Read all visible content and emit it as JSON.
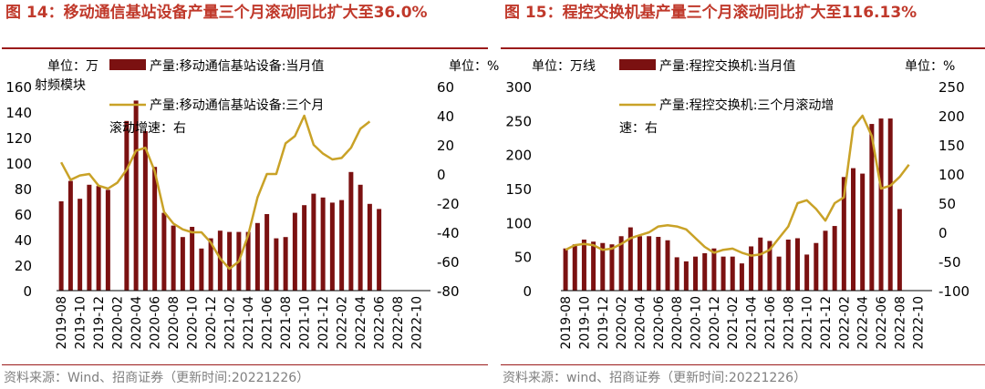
{
  "colors": {
    "title": "#c0392b",
    "bar": "#7b1111",
    "line": "#c9a227",
    "source": "#7f7f7f"
  },
  "chart_data": [
    {
      "type": "bar+line",
      "title": "图 14：移动通信基站设备产量三个月滚动同比扩大至36.0%",
      "unit_left": "单位：万射频模块",
      "unit_right": "单位：%",
      "legend_bar": "产量:移动通信基站设备:当月值",
      "legend_line": "产量:移动通信基站设备:三个月滚动增速：右",
      "source": "资料来源：Wind、招商证券（更新时间:20221226）",
      "left_ticks": [
        "0",
        "20",
        "40",
        "60",
        "80",
        "100",
        "120",
        "140",
        "160"
      ],
      "right_ticks": [
        "-80",
        "-60",
        "-40",
        "-20",
        "0",
        "20",
        "40",
        "60"
      ],
      "ylim_left": [
        0,
        160
      ],
      "ylim_right": [
        -80,
        60
      ],
      "x_tick_labels": [
        "2019-08",
        "2019-10",
        "2019-12",
        "2020-02",
        "2020-04",
        "2020-06",
        "2020-08",
        "2020-10",
        "2020-12",
        "2021-02",
        "2021-04",
        "2021-06",
        "2021-08",
        "2021-10",
        "2021-12",
        "2022-02",
        "2022-04",
        "2022-06",
        "2022-08",
        "2022-10"
      ],
      "months": [
        "2019-08",
        "2019-09",
        "2019-10",
        "2019-11",
        "2019-12",
        "2020-01",
        "2020-02",
        "2020-03",
        "2020-04",
        "2020-05",
        "2020-06",
        "2020-07",
        "2020-08",
        "2020-09",
        "2020-10",
        "2020-11",
        "2020-12",
        "2021-01",
        "2021-02",
        "2021-03",
        "2021-04",
        "2021-05",
        "2021-06",
        "2021-07",
        "2021-08",
        "2021-09",
        "2021-10",
        "2021-11",
        "2021-12",
        "2022-01",
        "2022-02",
        "2022-03",
        "2022-04",
        "2022-05",
        "2022-06",
        "2022-07",
        "2022-08",
        "2022-09",
        "2022-10",
        "2022-11"
      ],
      "bar_values": [
        70,
        86,
        72,
        83,
        82,
        79,
        null,
        133,
        149,
        125,
        97,
        61,
        51,
        42,
        50,
        33,
        41,
        47,
        46,
        46,
        46,
        53,
        60,
        41,
        42,
        61,
        67,
        76,
        73,
        69,
        71,
        93,
        83,
        68,
        64,
        null,
        null,
        null,
        null,
        null
      ],
      "line_values": [
        8,
        -4,
        -1,
        0,
        -8,
        -10,
        -6,
        3,
        16,
        18,
        2,
        -26,
        -34,
        -38,
        -40,
        -40,
        -47,
        -58,
        -65,
        -60,
        -42,
        -16,
        0,
        0,
        21,
        26,
        40,
        20,
        14,
        10,
        11,
        18,
        31,
        36,
        null,
        null,
        null,
        null,
        null,
        null
      ]
    },
    {
      "type": "bar+line",
      "title": "图 15：程控交换机基产量三个月滚动同比扩大至116.13%",
      "unit_left": "单位：万线",
      "unit_right": "单位：%",
      "legend_bar": "产量:程控交换机:当月值",
      "legend_line": "产量:程控交换机:三个月滚动增速：右",
      "source": "资料来源：wind、招商证券（更新时间:20221226）",
      "left_ticks": [
        "0",
        "50",
        "100",
        "150",
        "200",
        "250",
        "300"
      ],
      "right_ticks": [
        "-100",
        "-50",
        "0",
        "50",
        "100",
        "150",
        "200",
        "250"
      ],
      "ylim_left": [
        0,
        300
      ],
      "ylim_right": [
        -100,
        250
      ],
      "x_tick_labels": [
        "2019-08",
        "2019-10",
        "2019-12",
        "2020-02",
        "2020-04",
        "2020-06",
        "2020-08",
        "2020-10",
        "2020-12",
        "2021-02",
        "2021-04",
        "2021-06",
        "2021-08",
        "2021-10",
        "2021-12",
        "2022-02",
        "2022-04",
        "2022-06",
        "2022-08",
        "2022-10"
      ],
      "months": [
        "2019-08",
        "2019-09",
        "2019-10",
        "2019-11",
        "2019-12",
        "2020-01",
        "2020-02",
        "2020-03",
        "2020-04",
        "2020-05",
        "2020-06",
        "2020-07",
        "2020-08",
        "2020-09",
        "2020-10",
        "2020-11",
        "2020-12",
        "2021-01",
        "2021-02",
        "2021-03",
        "2021-04",
        "2021-05",
        "2021-06",
        "2021-07",
        "2021-08",
        "2021-09",
        "2021-10",
        "2021-11",
        "2021-12",
        "2022-01",
        "2022-02",
        "2022-03",
        "2022-04",
        "2022-05",
        "2022-06",
        "2022-07",
        "2022-08",
        "2022-09",
        "2022-10",
        "2022-11"
      ],
      "bar_values": [
        62,
        68,
        75,
        72,
        70,
        68,
        80,
        93,
        80,
        80,
        79,
        74,
        49,
        43,
        50,
        55,
        62,
        50,
        50,
        40,
        65,
        78,
        73,
        50,
        75,
        77,
        53,
        70,
        88,
        95,
        167,
        180,
        172,
        245,
        253,
        253,
        120,
        null,
        null,
        null
      ],
      "line_values": [
        -30,
        -22,
        -20,
        -22,
        -30,
        -28,
        -20,
        -10,
        -5,
        0,
        10,
        12,
        10,
        5,
        -10,
        -25,
        -35,
        -30,
        -28,
        -35,
        -40,
        -38,
        -30,
        -10,
        10,
        50,
        55,
        40,
        20,
        50,
        60,
        180,
        200,
        165,
        75,
        80,
        95,
        116,
        null,
        null
      ]
    }
  ]
}
